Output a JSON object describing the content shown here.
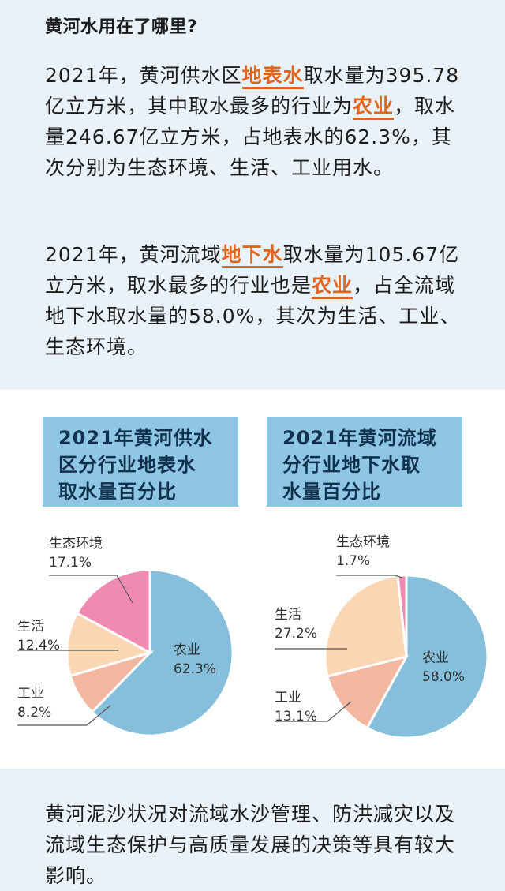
{
  "heading": "黄河水用在了哪里?",
  "para1": {
    "a": "2021年，黄河供水区",
    "hl1": "地表水",
    "b": "取水量为395.78亿立方米，其中取水最多的行业为",
    "hl2": "农业",
    "c": "，取水量246.67亿立方米，占地表水的62.3%，其次分别为生态环境、生活、工业用水。"
  },
  "para2": {
    "a": "2021年，黄河流域",
    "hl1": "地下水",
    "b": "取水量为105.67亿立方米，取水最多的行业也是",
    "hl2": "农业",
    "c": "，占全流域地下水取水量的58.0%，其次为生活、工业、生态环境。"
  },
  "para3": "黄河泥沙状况对流域水沙管理、防洪减灾以及流域生态保护与高质量发展的决策等具有较大影响。",
  "colors": {
    "agriculture": "#86bfdb",
    "industry": "#f2b79e",
    "life": "#fbd6b2",
    "ecology": "#f08ab0",
    "highlight": "#e0661f",
    "title_bg": "#8fc6e2"
  },
  "chart_data": [
    {
      "type": "pie",
      "title": "2021年黄河供水区分行业地表水取水量百分比",
      "title_lines": [
        "2021年黄河供水",
        "区分行业地表水",
        "取水量百分比"
      ],
      "slices": [
        {
          "name": "农业",
          "value": 62.3,
          "label": "62.3%",
          "color": "#86bfdb"
        },
        {
          "name": "工业",
          "value": 8.2,
          "label": "8.2%",
          "color": "#f2b79e"
        },
        {
          "name": "生活",
          "value": 12.4,
          "label": "12.4%",
          "color": "#fbd6b2"
        },
        {
          "name": "生态环境",
          "value": 17.1,
          "label": "17.1%",
          "color": "#f08ab0"
        }
      ]
    },
    {
      "type": "pie",
      "title": "2021年黄河流域分行业地下水取水量百分比",
      "title_lines": [
        "2021年黄河流域",
        "分行业地下水取",
        "水量百分比"
      ],
      "slices": [
        {
          "name": "农业",
          "value": 58.0,
          "label": "58.0%",
          "color": "#86bfdb"
        },
        {
          "name": "工业",
          "value": 13.1,
          "label": "13.1%",
          "color": "#f2b79e"
        },
        {
          "name": "生活",
          "value": 27.2,
          "label": "27.2%",
          "color": "#fbd6b2"
        },
        {
          "name": "生态环境",
          "value": 1.7,
          "label": "1.7%",
          "color": "#f08ab0"
        }
      ]
    }
  ]
}
